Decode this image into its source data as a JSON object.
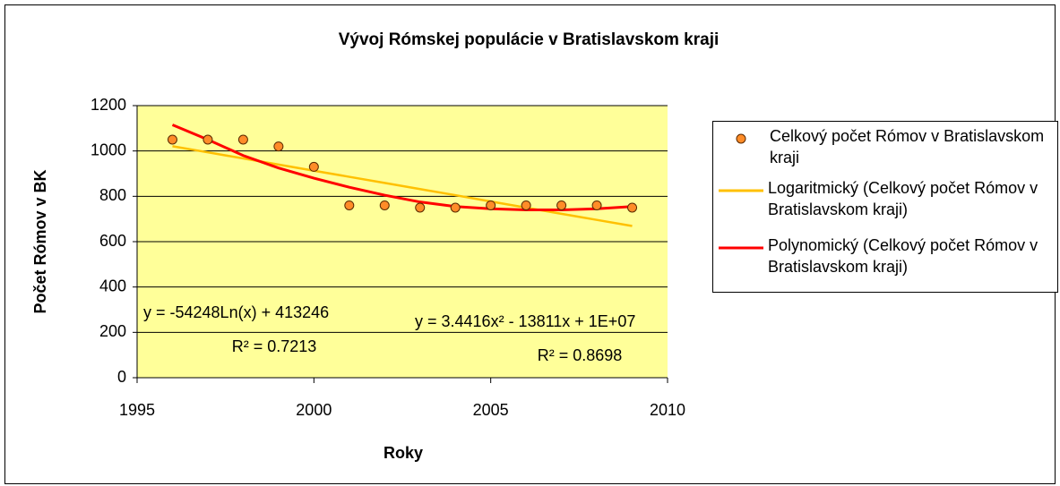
{
  "chart_data": {
    "type": "scatter",
    "title": "Vývoj Rómskej populácie v Bratislavskom kraji",
    "xlabel": "Roky",
    "ylabel": "Počet Rómov v BK",
    "xlim": [
      1995,
      2010
    ],
    "xticks": [
      1995,
      2000,
      2005,
      2010
    ],
    "ylim": [
      0,
      1200
    ],
    "yticks": [
      0,
      200,
      400,
      600,
      800,
      1000,
      1200
    ],
    "grid": true,
    "legend": "right",
    "plot_background": "#ffff99",
    "series": [
      {
        "name": "Celkový počet Rómov v Bratislavskom kraji",
        "type": "scatter",
        "color": "#ff8c28",
        "x": [
          1996,
          1997,
          1998,
          1999,
          2000,
          2001,
          2002,
          2003,
          2004,
          2005,
          2006,
          2007,
          2008,
          2009
        ],
        "values": [
          1050,
          1050,
          1050,
          1020,
          930,
          760,
          760,
          750,
          750,
          760,
          760,
          760,
          760,
          750
        ]
      },
      {
        "name": "Logaritmický (Celkový počet Rómov v Bratislavskom kraji)",
        "type": "line",
        "color": "#ffc000",
        "x": [
          1996,
          1997,
          1998,
          1999,
          2000,
          2001,
          2002,
          2003,
          2004,
          2005,
          2006,
          2007,
          2008,
          2009
        ],
        "values": [
          1021,
          994,
          967,
          940,
          913,
          886,
          859,
          832,
          805,
          777,
          750,
          723,
          696,
          669
        ]
      },
      {
        "name": "Polynomický (Celkový počet Rómov v Bratislavskom kraji)",
        "type": "line",
        "color": "#ff0000",
        "x": [
          1996,
          1997,
          1998,
          1999,
          2000,
          2001,
          2002,
          2003,
          2004,
          2005,
          2006,
          2007,
          2008,
          2009
        ],
        "values": [
          1115,
          1050,
          980,
          925,
          880,
          840,
          805,
          775,
          755,
          745,
          740,
          740,
          745,
          755
        ]
      }
    ],
    "annotations": [
      "y = -54248Ln(x) + 413246",
      "R² = 0.7213",
      "y = 3.4416x² - 13811x + 1E+07",
      "R² = 0.8698"
    ]
  }
}
